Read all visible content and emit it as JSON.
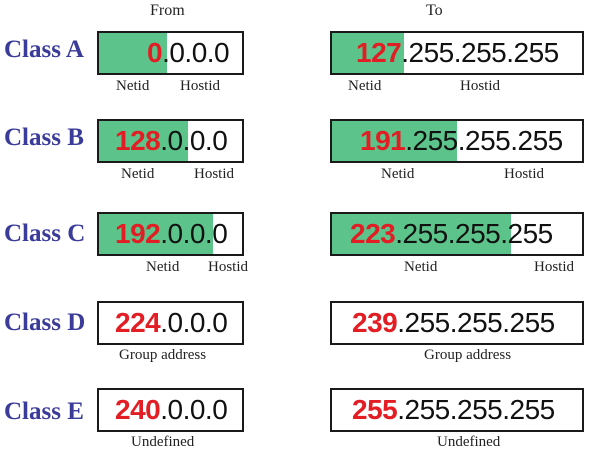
{
  "headers": {
    "from": "From",
    "to": "To"
  },
  "labels": {
    "netid": "Netid",
    "hostid": "Hostid",
    "group": "Group address",
    "undefined": "Undefined"
  },
  "classes": [
    {
      "name": "Class A",
      "from": {
        "first": "0",
        "rest": ".0.0.0"
      },
      "to": {
        "first": "127",
        "rest": ".255.255.255"
      }
    },
    {
      "name": "Class B",
      "from": {
        "first": "128",
        "rest": ".0.0.0"
      },
      "to": {
        "first": "191",
        "rest": ".255.255.255"
      }
    },
    {
      "name": "Class C",
      "from": {
        "first": "192",
        "rest": ".0.0.0"
      },
      "to": {
        "first": "223",
        "rest": ".255.255.255"
      }
    },
    {
      "name": "Class D",
      "from": {
        "first": "224",
        "rest": ".0.0.0"
      },
      "to": {
        "first": "239",
        "rest": ".255.255.255"
      }
    },
    {
      "name": "Class E",
      "from": {
        "first": "240",
        "rest": ".0.0.0"
      },
      "to": {
        "first": "255",
        "rest": ".255.255.255"
      }
    }
  ],
  "colors": {
    "netid_fill": "#5cc48a",
    "first_octet": "#e21d24",
    "class_label": "#3b3b9a"
  }
}
